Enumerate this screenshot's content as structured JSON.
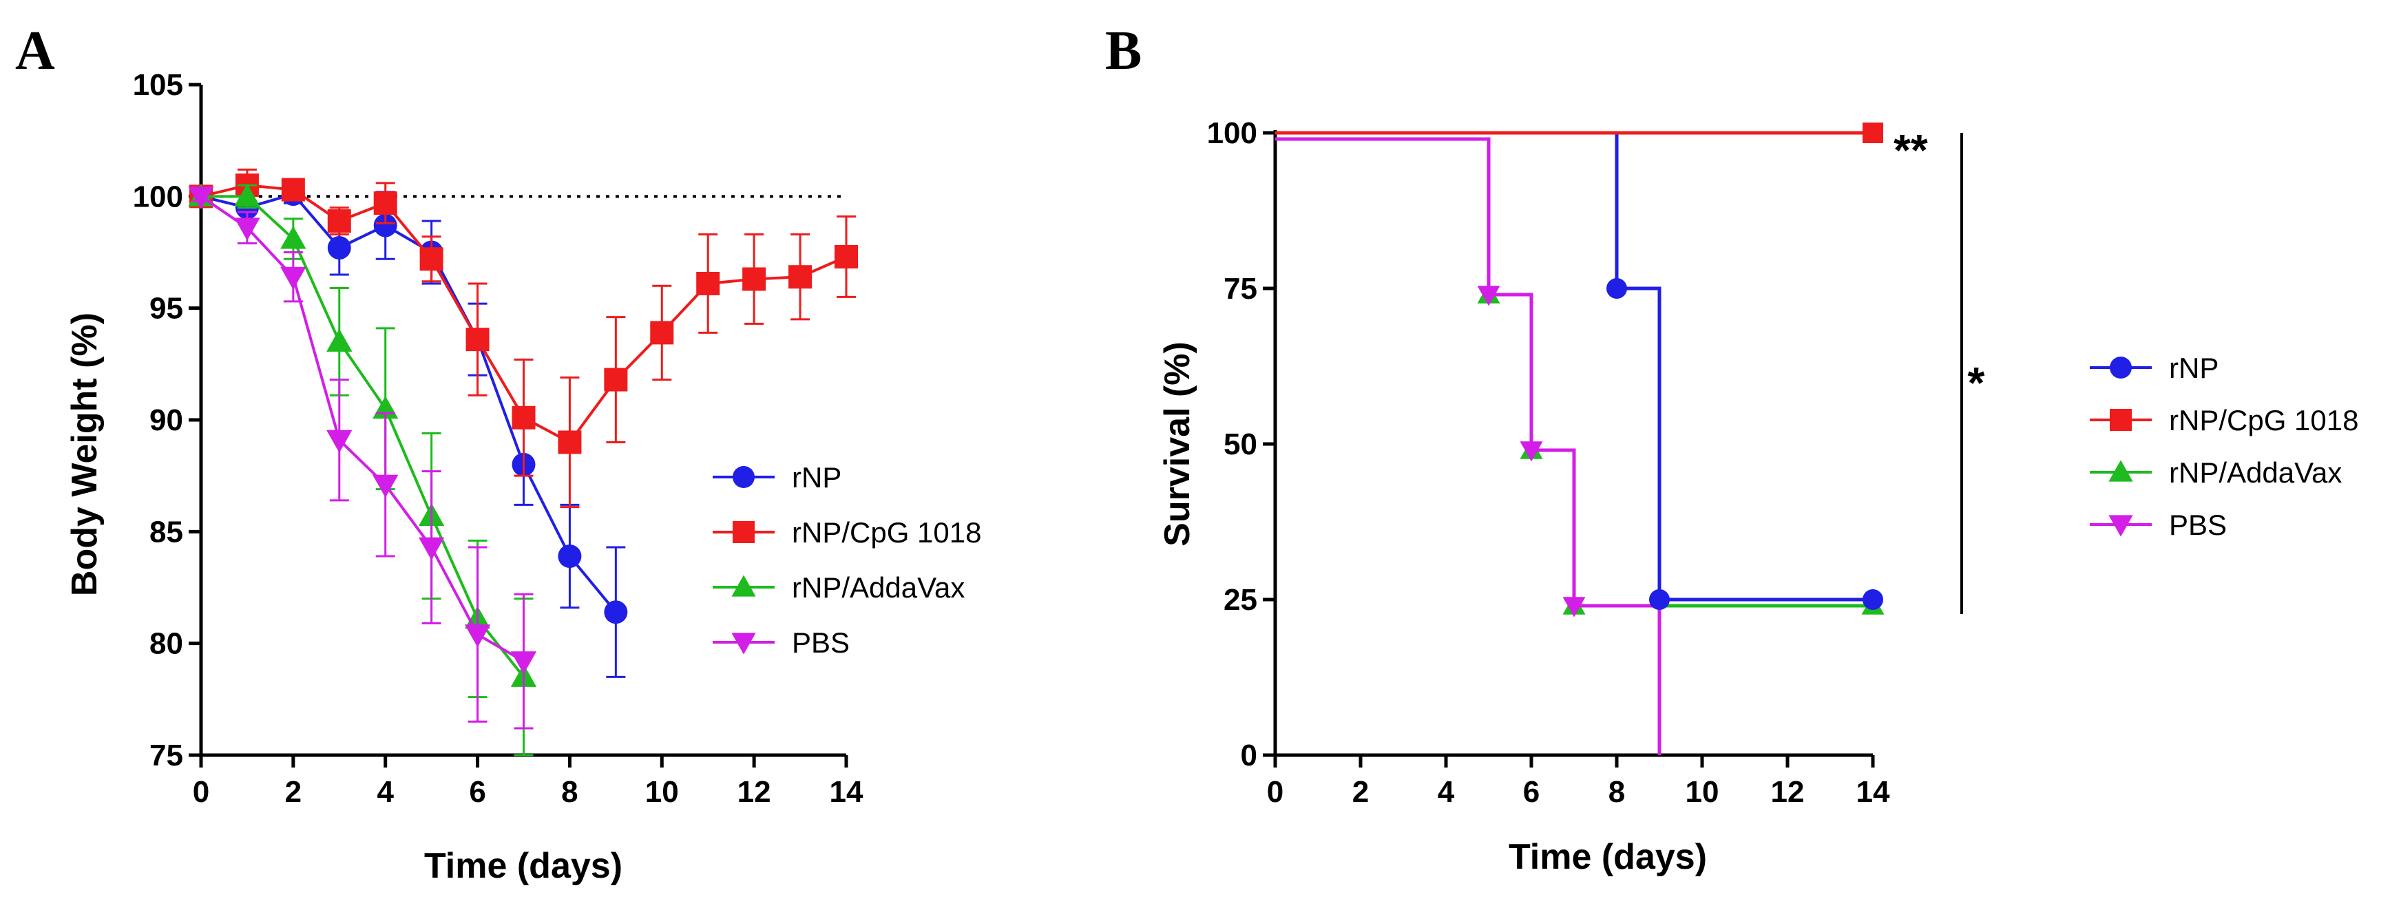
{
  "chart_data": [
    {
      "panel_label": "A",
      "type": "line",
      "xlabel": "Time (days)",
      "ylabel": "Body Weight (%)",
      "xlim": [
        0,
        14
      ],
      "ylim": [
        75,
        105
      ],
      "x_ticks": [
        0,
        2,
        4,
        6,
        8,
        10,
        12,
        14
      ],
      "y_ticks": [
        75,
        80,
        85,
        90,
        95,
        100,
        105
      ],
      "reference_line": 100,
      "legend_position": "right",
      "series": [
        {
          "name": "rNP",
          "color": "#1f1fe6",
          "marker": "circle",
          "x": [
            0,
            1,
            2,
            3,
            4,
            5,
            6,
            7,
            8,
            9
          ],
          "values": [
            100,
            99.5,
            100.1,
            97.7,
            98.7,
            97.5,
            93.6,
            88.0,
            83.9,
            81.4
          ],
          "errors": [
            0.2,
            0.6,
            0.4,
            1.2,
            1.5,
            1.4,
            1.6,
            1.8,
            2.3,
            2.9
          ]
        },
        {
          "name": "rNP/CpG 1018",
          "color": "#ee1c1c",
          "marker": "square",
          "x": [
            0,
            1,
            2,
            3,
            4,
            5,
            6,
            7,
            8,
            9,
            10,
            11,
            12,
            13,
            14
          ],
          "values": [
            100,
            100.5,
            100.3,
            98.9,
            99.7,
            97.2,
            93.6,
            90.1,
            89.0,
            91.8,
            93.9,
            96.1,
            96.3,
            96.4,
            97.3
          ],
          "errors": [
            0.2,
            0.7,
            0.4,
            0.6,
            0.9,
            1.0,
            2.5,
            2.6,
            2.9,
            2.8,
            2.1,
            2.2,
            2.0,
            1.9,
            1.8
          ]
        },
        {
          "name": "rNP/AddaVax",
          "color": "#1dbb1d",
          "marker": "triangle",
          "x": [
            0,
            1,
            2,
            3,
            4,
            5,
            6,
            7
          ],
          "values": [
            100,
            100.0,
            98.1,
            93.5,
            90.5,
            85.7,
            81.1,
            78.5
          ],
          "errors": [
            0.2,
            0.5,
            0.9,
            2.4,
            3.6,
            3.7,
            3.5,
            3.5
          ]
        },
        {
          "name": "PBS",
          "color": "#d21ee6",
          "marker": "triangle-down",
          "x": [
            0,
            1,
            2,
            3,
            4,
            5,
            6,
            7
          ],
          "values": [
            100,
            98.6,
            96.4,
            89.1,
            87.1,
            84.3,
            80.4,
            79.2
          ],
          "errors": [
            0.2,
            0.7,
            1.1,
            2.7,
            3.2,
            3.4,
            3.9,
            3.0
          ]
        }
      ]
    },
    {
      "panel_label": "B",
      "type": "line",
      "step": true,
      "xlabel": "Time (days)",
      "ylabel": "Survival (%)",
      "xlim": [
        0,
        14
      ],
      "ylim": [
        0,
        100
      ],
      "x_ticks": [
        0,
        2,
        4,
        6,
        8,
        10,
        12,
        14
      ],
      "y_ticks": [
        0,
        25,
        50,
        75,
        100
      ],
      "legend_position": "right",
      "annotations": [
        {
          "text": "**",
          "note": "rNP/CpG 1018 vs others"
        },
        {
          "text": "*",
          "note": "bracket comparison"
        }
      ],
      "series": [
        {
          "name": "rNP",
          "color": "#1f1fe6",
          "marker": "circle",
          "steps": [
            [
              0,
              100
            ],
            [
              8,
              75
            ],
            [
              9,
              25
            ],
            [
              14,
              25
            ]
          ]
        },
        {
          "name": "rNP/CpG 1018",
          "color": "#ee1c1c",
          "marker": "square",
          "steps": [
            [
              0,
              100
            ],
            [
              14,
              100
            ]
          ]
        },
        {
          "name": "rNP/AddaVax",
          "color": "#1dbb1d",
          "marker": "triangle",
          "steps": [
            [
              0,
              99
            ],
            [
              5,
              74
            ],
            [
              6,
              49
            ],
            [
              7,
              24
            ],
            [
              14,
              24
            ]
          ]
        },
        {
          "name": "PBS",
          "color": "#d21ee6",
          "marker": "triangle-down",
          "steps": [
            [
              0,
              99
            ],
            [
              5,
              74
            ],
            [
              6,
              49
            ],
            [
              7,
              24
            ],
            [
              9,
              0
            ]
          ]
        }
      ]
    }
  ]
}
